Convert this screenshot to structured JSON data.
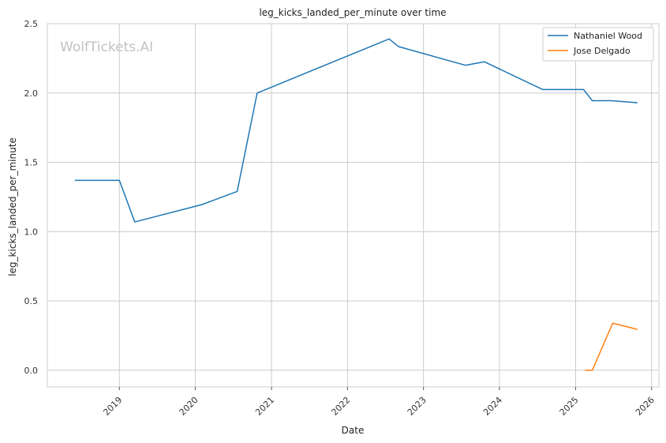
{
  "chart_data": {
    "type": "line",
    "title": "leg_kicks_landed_per_minute over time",
    "xlabel": "Date",
    "ylabel": "leg_kicks_landed_per_minute",
    "watermark": "WolfTickets.AI",
    "xlim": [
      "2018-01-20",
      "2026-02-05"
    ],
    "ylim": [
      -0.12,
      2.5
    ],
    "x_ticks": [
      "2019-01-01",
      "2020-01-01",
      "2021-01-01",
      "2022-01-01",
      "2023-01-01",
      "2024-01-01",
      "2025-01-01",
      "2026-01-01"
    ],
    "x_tick_labels": [
      "2019",
      "2020",
      "2021",
      "2022",
      "2023",
      "2024",
      "2025",
      "2026"
    ],
    "y_ticks": [
      0.0,
      0.5,
      1.0,
      1.5,
      2.0,
      2.5
    ],
    "y_tick_labels": [
      "0.0",
      "0.5",
      "1.0",
      "1.5",
      "2.0",
      "2.5"
    ],
    "grid": true,
    "legend_position": "top-right",
    "series": [
      {
        "name": "Nathaniel Wood",
        "color": "#1f77b4",
        "points": [
          {
            "x": "2018-06-01",
            "y": 1.37
          },
          {
            "x": "2019-01-01",
            "y": 1.37
          },
          {
            "x": "2019-03-16",
            "y": 1.07
          },
          {
            "x": "2020-02-01",
            "y": 1.195
          },
          {
            "x": "2020-07-20",
            "y": 1.29
          },
          {
            "x": "2020-10-24",
            "y": 2.0
          },
          {
            "x": "2022-07-20",
            "y": 2.39
          },
          {
            "x": "2022-09-03",
            "y": 2.335
          },
          {
            "x": "2023-07-22",
            "y": 2.2
          },
          {
            "x": "2023-10-21",
            "y": 2.225
          },
          {
            "x": "2024-07-27",
            "y": 2.025
          },
          {
            "x": "2025-02-08",
            "y": 2.025
          },
          {
            "x": "2025-03-22",
            "y": 1.945
          },
          {
            "x": "2025-06-21",
            "y": 1.945
          },
          {
            "x": "2025-10-25",
            "y": 1.93
          }
        ]
      },
      {
        "name": "Jose Delgado",
        "color": "#ff7f0e",
        "points": [
          {
            "x": "2025-02-15",
            "y": 0.0
          },
          {
            "x": "2025-03-22",
            "y": 0.0
          },
          {
            "x": "2025-06-28",
            "y": 0.34
          },
          {
            "x": "2025-10-25",
            "y": 0.295
          }
        ]
      }
    ]
  }
}
